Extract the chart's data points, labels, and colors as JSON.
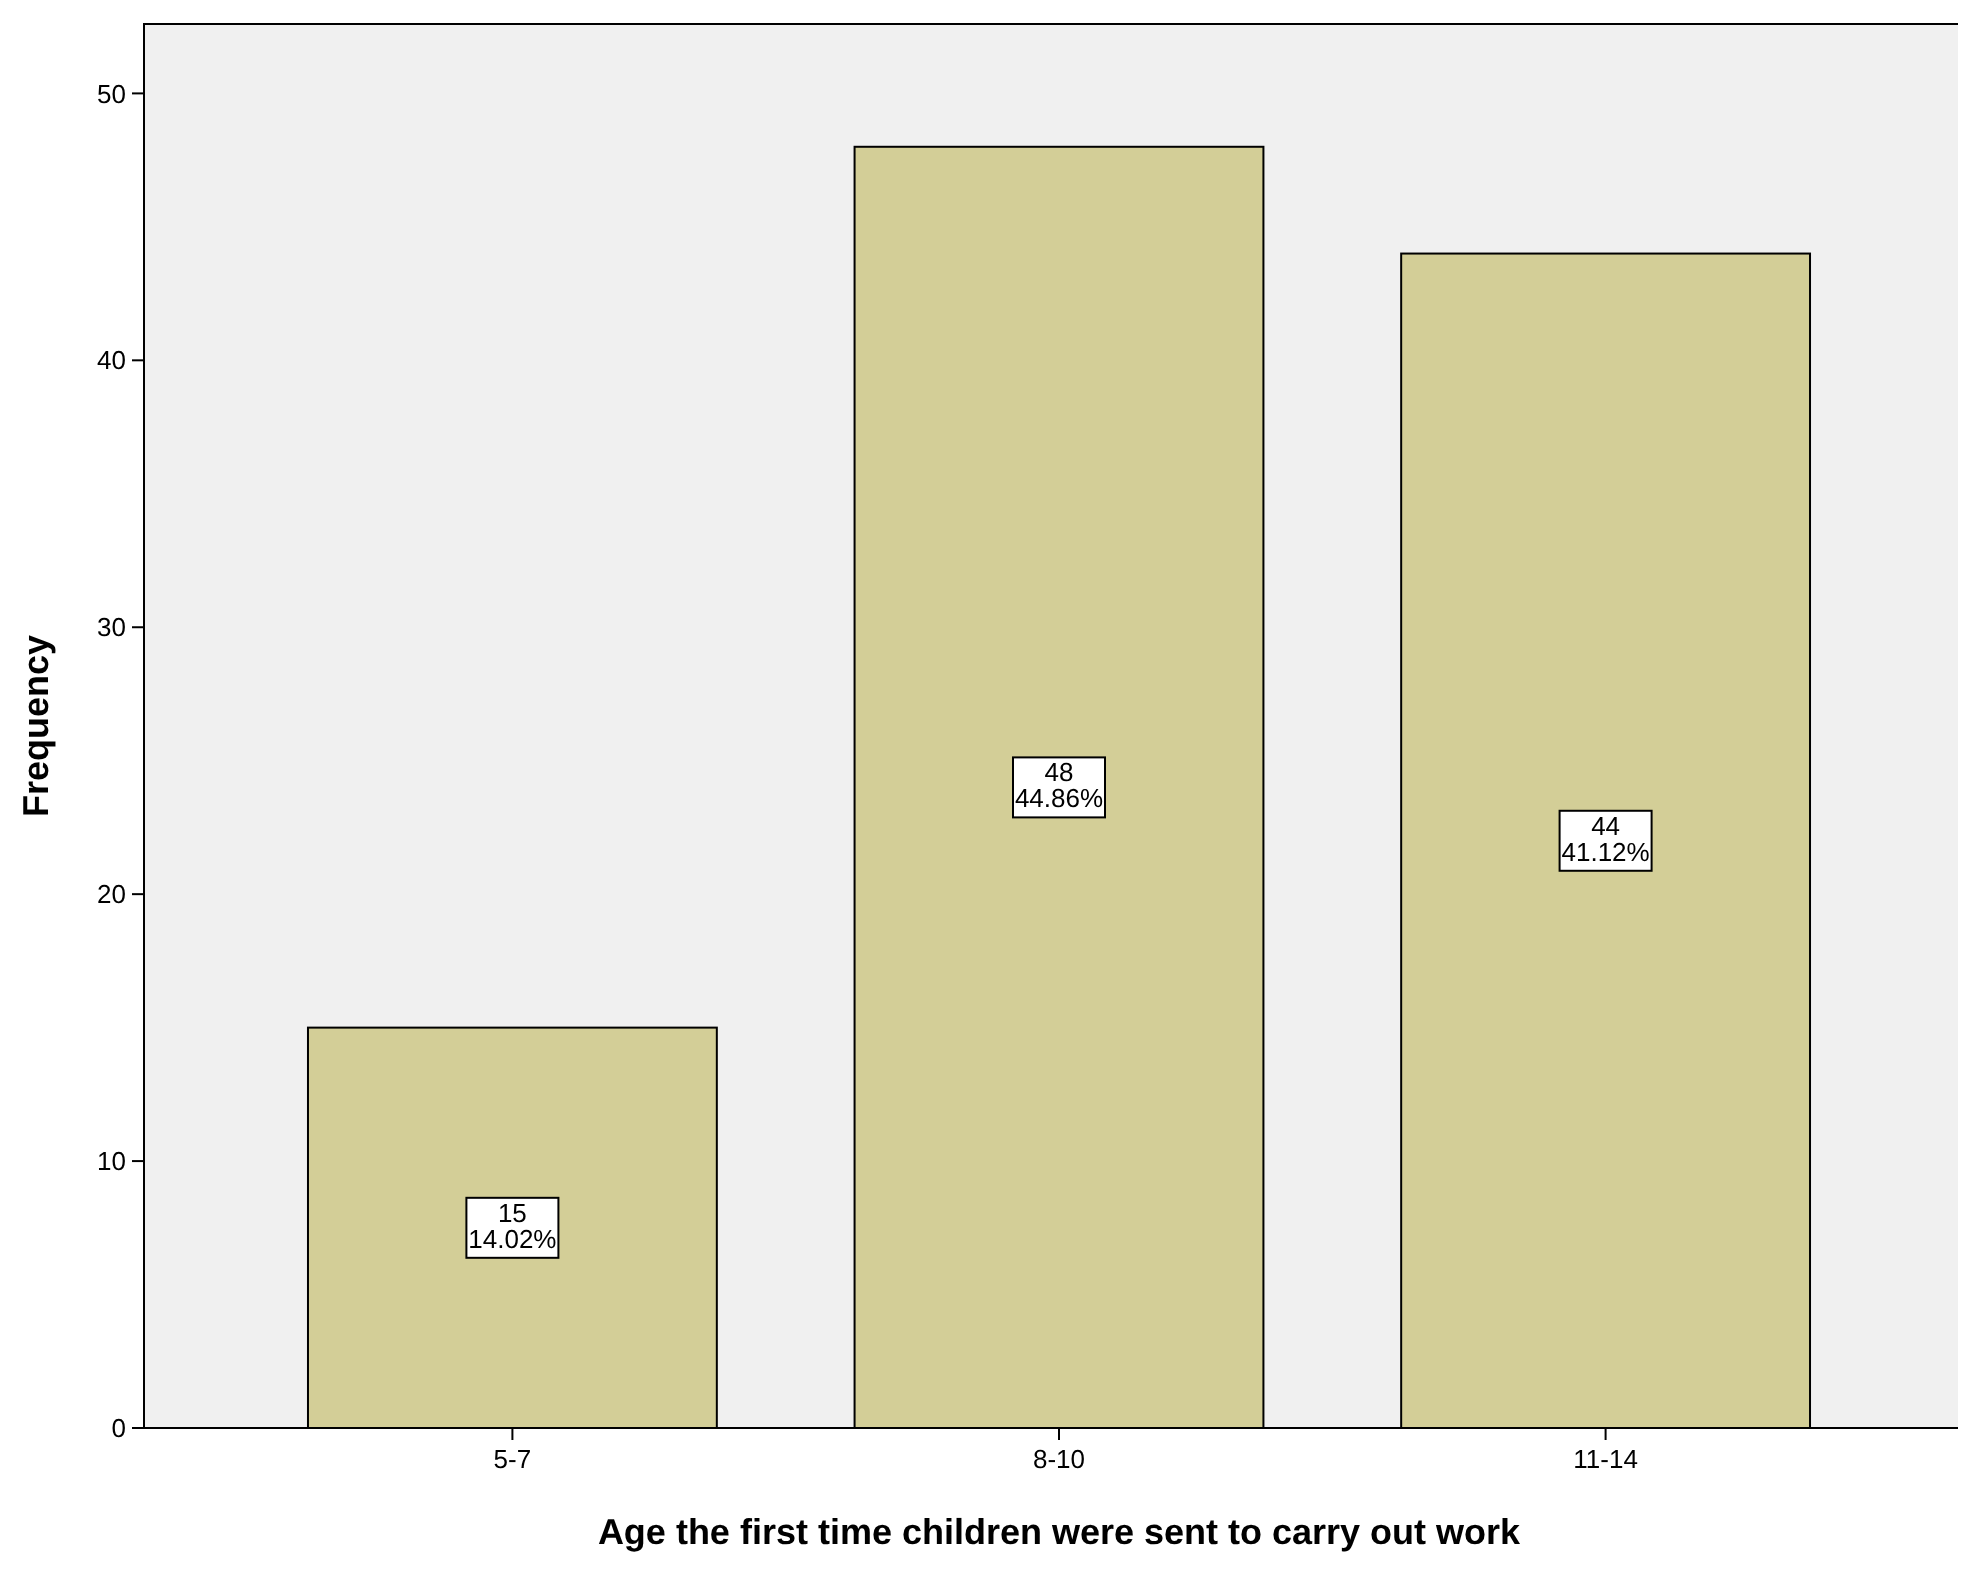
{
  "chart_data": {
    "type": "bar",
    "xlabel": "Age the first time children were sent to carry out work",
    "ylabel": "Frequency",
    "categories": [
      "5-7",
      "8-10",
      "11-14"
    ],
    "values": [
      15,
      48,
      44
    ],
    "value_labels": [
      "15\n14.02%",
      "48\n44.86%",
      "44\n41.12%"
    ],
    "color": "#d3ce97",
    "ylim": [
      0,
      52.6
    ],
    "yticks": [
      0,
      10,
      20,
      30,
      40,
      50
    ],
    "grid": false
  }
}
